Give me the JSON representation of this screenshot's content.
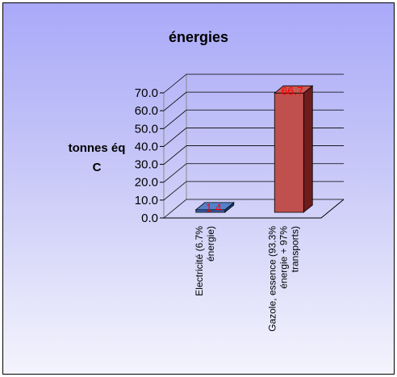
{
  "chart_data": {
    "type": "bar",
    "title": "énergies",
    "ylabel_lines": [
      "tonnes éq",
      "C"
    ],
    "xlabel": "",
    "ylim": [
      0,
      70
    ],
    "ytick_step": 10,
    "yticks": [
      "0.0",
      "10.0",
      "20.0",
      "30.0",
      "40.0",
      "50.0",
      "60.0",
      "70.0"
    ],
    "categories": [
      [
        "Electricité (6.7%",
        "énergie)"
      ],
      [
        "Gazole, essence (93.3%",
        "énergie + 97%",
        "transports)"
      ]
    ],
    "values": [
      1.4,
      66.7
    ],
    "data_labels": [
      "1.4",
      "66.7"
    ],
    "bar_colors": [
      {
        "front": "#3a66b4",
        "top": "#5580cc",
        "side": "#1e3f7a"
      },
      {
        "front": "#c0504d",
        "top": "#c85a56",
        "side": "#6e1c1c"
      }
    ],
    "data_label_color": "#ff0000",
    "grid": true,
    "legend": "none",
    "style": "3d-column"
  }
}
